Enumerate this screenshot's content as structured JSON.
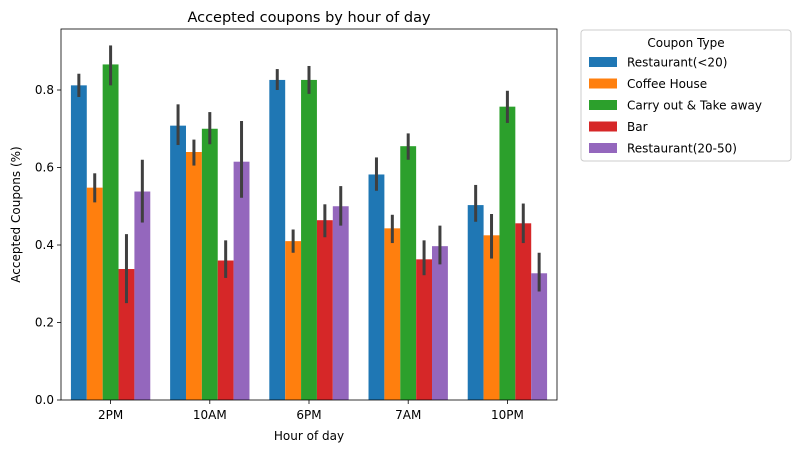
{
  "chart_data": {
    "type": "bar",
    "title": "Accepted coupons by hour of day",
    "xlabel": "Hour of day",
    "ylabel": "Accepted Coupons (%)",
    "categories": [
      "2PM",
      "10AM",
      "6PM",
      "7AM",
      "10PM"
    ],
    "ylim": [
      0,
      0.95
    ],
    "yticks": [
      "0.0",
      "0.2",
      "0.4",
      "0.6",
      "0.8"
    ],
    "legend": {
      "title": "Coupon Type",
      "placement": "outside-right-top"
    },
    "series": [
      {
        "name": "Restaurant(<20)",
        "color": "#1f77b4",
        "values": [
          0.812,
          0.708,
          0.826,
          0.582,
          0.503
        ],
        "ci": [
          [
            0.782,
            0.842
          ],
          [
            0.658,
            0.763
          ],
          [
            0.8,
            0.854
          ],
          [
            0.54,
            0.626
          ],
          [
            0.46,
            0.555
          ]
        ]
      },
      {
        "name": "Coffee House",
        "color": "#ff7f0e",
        "values": [
          0.548,
          0.64,
          0.41,
          0.443,
          0.425
        ],
        "ci": [
          [
            0.51,
            0.585
          ],
          [
            0.605,
            0.672
          ],
          [
            0.38,
            0.44
          ],
          [
            0.405,
            0.478
          ],
          [
            0.365,
            0.48
          ]
        ]
      },
      {
        "name": "Carry out & Take away",
        "color": "#2ca02c",
        "values": [
          0.866,
          0.7,
          0.826,
          0.655,
          0.757
        ],
        "ci": [
          [
            0.812,
            0.915
          ],
          [
            0.66,
            0.743
          ],
          [
            0.79,
            0.862
          ],
          [
            0.62,
            0.688
          ],
          [
            0.715,
            0.798
          ]
        ]
      },
      {
        "name": "Bar",
        "color": "#d62728",
        "values": [
          0.338,
          0.36,
          0.464,
          0.363,
          0.456
        ],
        "ci": [
          [
            0.25,
            0.428
          ],
          [
            0.315,
            0.412
          ],
          [
            0.42,
            0.505
          ],
          [
            0.322,
            0.412
          ],
          [
            0.405,
            0.507
          ]
        ]
      },
      {
        "name": "Restaurant(20-50)",
        "color": "#9467bd",
        "values": [
          0.538,
          0.615,
          0.5,
          0.397,
          0.327
        ],
        "ci": [
          [
            0.458,
            0.62
          ],
          [
            0.522,
            0.72
          ],
          [
            0.45,
            0.552
          ],
          [
            0.35,
            0.45
          ],
          [
            0.28,
            0.38
          ]
        ]
      }
    ]
  }
}
